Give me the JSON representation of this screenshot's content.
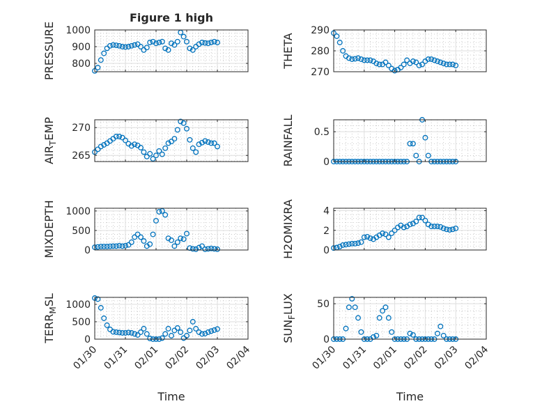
{
  "title": "Figure 1 high",
  "chart_data": {
    "type": "scatter",
    "title": "Figure 1 high",
    "xlabel": "Time",
    "x_tick_labels": [
      "01/30",
      "01/31",
      "02/01",
      "02/02",
      "02/03",
      "02/04"
    ],
    "xlim_days": [
      0,
      5
    ],
    "x_units": "days since 01/30",
    "x": [
      0,
      0.1,
      0.2,
      0.3,
      0.4,
      0.5,
      0.6,
      0.7,
      0.8,
      0.9,
      1.0,
      1.1,
      1.2,
      1.3,
      1.4,
      1.5,
      1.6,
      1.7,
      1.8,
      1.9,
      2.0,
      2.1,
      2.2,
      2.3,
      2.4,
      2.5,
      2.6,
      2.7,
      2.8,
      2.9,
      3.0,
      3.1,
      3.2,
      3.3,
      3.4,
      3.5,
      3.6,
      3.7,
      3.8,
      3.9,
      4.0
    ],
    "grid": "major and minor",
    "marker": "open circle",
    "color": "#0072BD",
    "subplots": [
      {
        "ylabel": "PRESSURE",
        "ylim": [
          750,
          1000
        ],
        "yticks": [
          800,
          900,
          1000
        ],
        "values": [
          755,
          775,
          820,
          860,
          890,
          905,
          910,
          908,
          905,
          900,
          898,
          900,
          905,
          910,
          915,
          900,
          880,
          895,
          925,
          930,
          920,
          925,
          930,
          890,
          880,
          920,
          910,
          930,
          985,
          960,
          930,
          890,
          880,
          900,
          915,
          925,
          922,
          920,
          925,
          930,
          925
        ]
      },
      {
        "ylabel": "THETA",
        "ylim": [
          270,
          290
        ],
        "yticks": [
          270,
          280,
          290
        ],
        "values": [
          288.5,
          287,
          284,
          280,
          277.5,
          276.5,
          276,
          276.2,
          276.5,
          276,
          275.5,
          275.5,
          275.5,
          275,
          274,
          273.5,
          273.5,
          274.5,
          273,
          271.5,
          270.5,
          271,
          272,
          273.5,
          275.5,
          274,
          275,
          274.5,
          273,
          273.5,
          275,
          276,
          276,
          275.5,
          275,
          274.5,
          274,
          273.5,
          273.5,
          273.5,
          273
        ]
      },
      {
        "ylabel": "AIR_TEMP",
        "ylim": [
          263.9,
          271.4
        ],
        "yticks": [
          265,
          270
        ],
        "values": [
          265.6,
          266.1,
          266.6,
          266.9,
          267.2,
          267.6,
          268.0,
          268.4,
          268.4,
          268.2,
          267.7,
          267.1,
          266.7,
          267.0,
          266.8,
          266.4,
          265.6,
          264.8,
          265.3,
          264.4,
          265.0,
          265.8,
          265.2,
          266.3,
          267.2,
          267.5,
          268.0,
          269.6,
          271.1,
          270.8,
          269.8,
          267.8,
          266.3,
          265.6,
          267.0,
          267.3,
          267.6,
          267.4,
          267.2,
          267.2,
          266.6
        ]
      },
      {
        "ylabel": "RAINFALL",
        "ylim": [
          0,
          0.7
        ],
        "yticks": [
          0,
          0.5
        ],
        "values": [
          0,
          0,
          0,
          0,
          0,
          0,
          0,
          0,
          0,
          0,
          0,
          0,
          0,
          0,
          0,
          0,
          0,
          0,
          0,
          0,
          0,
          0,
          0,
          0,
          0,
          0.3,
          0.3,
          0.1,
          0,
          0.7,
          0.4,
          0.1,
          0,
          0,
          0,
          0,
          0,
          0,
          0,
          0,
          0
        ]
      },
      {
        "ylabel": "MIXDEPTH",
        "ylim": [
          0,
          1070
        ],
        "yticks": [
          0,
          500,
          1000
        ],
        "values": [
          70,
          80,
          90,
          90,
          90,
          95,
          100,
          100,
          110,
          100,
          110,
          130,
          200,
          330,
          400,
          330,
          230,
          100,
          150,
          400,
          750,
          980,
          1000,
          900,
          300,
          250,
          100,
          200,
          300,
          280,
          420,
          50,
          30,
          20,
          60,
          100,
          20,
          30,
          40,
          30,
          20
        ]
      },
      {
        "ylabel": "H2OMIXRA",
        "ylim": [
          0,
          4.25
        ],
        "yticks": [
          0,
          2,
          4
        ],
        "values": [
          0.2,
          0.25,
          0.35,
          0.5,
          0.55,
          0.6,
          0.65,
          0.65,
          0.7,
          0.8,
          1.3,
          1.35,
          1.2,
          1.1,
          1.3,
          1.5,
          1.7,
          1.6,
          1.3,
          1.7,
          2.0,
          2.3,
          2.5,
          2.3,
          2.4,
          2.6,
          2.7,
          2.9,
          3.3,
          3.3,
          3.0,
          2.6,
          2.4,
          2.4,
          2.4,
          2.35,
          2.2,
          2.1,
          2.05,
          2.1,
          2.2
        ]
      },
      {
        "ylabel": "TERR_MSL",
        "ylim": [
          0,
          1200
        ],
        "yticks": [
          0,
          500,
          1000
        ],
        "values": [
          1180,
          1150,
          900,
          600,
          400,
          280,
          210,
          200,
          190,
          180,
          180,
          190,
          180,
          150,
          120,
          200,
          300,
          150,
          20,
          0,
          0,
          0,
          30,
          150,
          300,
          100,
          250,
          320,
          200,
          30,
          100,
          250,
          500,
          300,
          200,
          150,
          160,
          200,
          230,
          260,
          290
        ]
      },
      {
        "ylabel": "SUN_FLUX",
        "ylim": [
          0,
          59
        ],
        "yticks": [
          0,
          50
        ],
        "values": [
          0,
          0,
          0,
          0,
          15,
          45,
          57,
          45,
          30,
          10,
          0,
          0,
          0,
          3,
          5,
          30,
          40,
          45,
          30,
          10,
          0,
          0,
          0,
          0,
          0,
          8,
          6,
          0,
          0,
          0,
          0,
          0,
          0,
          0,
          8,
          18,
          5,
          0,
          0,
          0,
          0
        ]
      }
    ]
  }
}
